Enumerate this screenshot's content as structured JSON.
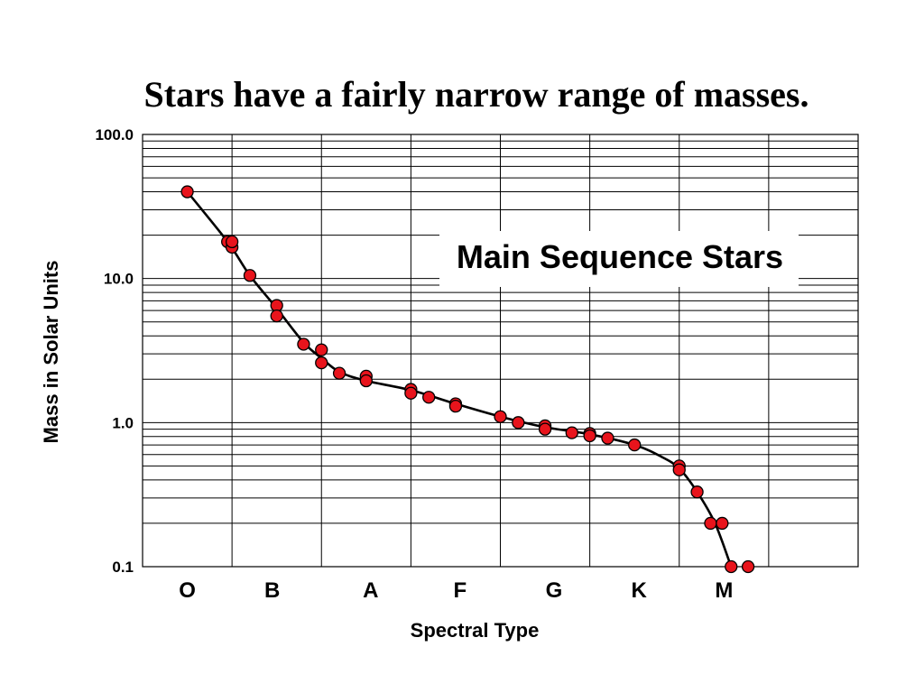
{
  "chart_data": {
    "type": "scatter",
    "title": "Stars have a fairly narrow range of masses.",
    "xlabel": "Spectral Type",
    "ylabel": "Mass in Solar Units",
    "y_scale": "log",
    "ylim": [
      0.1,
      100
    ],
    "y_ticks": [
      "100.0",
      "10.0",
      "1.0",
      "0.1"
    ],
    "x_range": [
      0,
      8
    ],
    "categories": [
      "O",
      "B",
      "A",
      "F",
      "G",
      "K",
      "M"
    ],
    "category_positions": [
      0.5,
      1.45,
      2.55,
      3.55,
      4.6,
      5.55,
      6.5
    ],
    "annotation": "Main Sequence Stars",
    "grid": true,
    "series": [
      {
        "marker_color": "#e8141c",
        "line_color": "#000000",
        "points": [
          {
            "x": 0.5,
            "y": 40
          },
          {
            "x": 0.95,
            "y": 18
          },
          {
            "x": 1.0,
            "y": 16.5
          },
          {
            "x": 1.0,
            "y": 18
          },
          {
            "x": 1.2,
            "y": 10.5
          },
          {
            "x": 1.5,
            "y": 6.5
          },
          {
            "x": 1.5,
            "y": 5.5
          },
          {
            "x": 1.8,
            "y": 3.5
          },
          {
            "x": 2.0,
            "y": 3.2
          },
          {
            "x": 2.0,
            "y": 2.6
          },
          {
            "x": 2.2,
            "y": 2.2
          },
          {
            "x": 2.5,
            "y": 2.1
          },
          {
            "x": 2.5,
            "y": 1.95
          },
          {
            "x": 3.0,
            "y": 1.7
          },
          {
            "x": 3.0,
            "y": 1.6
          },
          {
            "x": 3.2,
            "y": 1.5
          },
          {
            "x": 3.5,
            "y": 1.35
          },
          {
            "x": 3.5,
            "y": 1.3
          },
          {
            "x": 4.0,
            "y": 1.1
          },
          {
            "x": 4.2,
            "y": 1.0
          },
          {
            "x": 4.5,
            "y": 0.95
          },
          {
            "x": 4.5,
            "y": 0.9
          },
          {
            "x": 4.8,
            "y": 0.85
          },
          {
            "x": 5.0,
            "y": 0.84
          },
          {
            "x": 5.0,
            "y": 0.81
          },
          {
            "x": 5.2,
            "y": 0.78
          },
          {
            "x": 5.5,
            "y": 0.7
          },
          {
            "x": 6.0,
            "y": 0.5
          },
          {
            "x": 6.0,
            "y": 0.47
          },
          {
            "x": 6.2,
            "y": 0.33
          },
          {
            "x": 6.35,
            "y": 0.2
          },
          {
            "x": 6.48,
            "y": 0.2
          },
          {
            "x": 6.58,
            "y": 0.1
          },
          {
            "x": 6.77,
            "y": 0.1
          }
        ],
        "curve": [
          {
            "x": 0.5,
            "y": 40
          },
          {
            "x": 0.95,
            "y": 18
          },
          {
            "x": 1.2,
            "y": 10.5
          },
          {
            "x": 1.5,
            "y": 6.2
          },
          {
            "x": 1.8,
            "y": 3.6
          },
          {
            "x": 2.0,
            "y": 2.8
          },
          {
            "x": 2.2,
            "y": 2.25
          },
          {
            "x": 2.5,
            "y": 1.95
          },
          {
            "x": 3.0,
            "y": 1.68
          },
          {
            "x": 3.5,
            "y": 1.35
          },
          {
            "x": 4.0,
            "y": 1.1
          },
          {
            "x": 4.5,
            "y": 0.93
          },
          {
            "x": 5.0,
            "y": 0.83
          },
          {
            "x": 5.5,
            "y": 0.7
          },
          {
            "x": 5.8,
            "y": 0.58
          },
          {
            "x": 6.0,
            "y": 0.48
          },
          {
            "x": 6.2,
            "y": 0.33
          },
          {
            "x": 6.4,
            "y": 0.2
          },
          {
            "x": 6.58,
            "y": 0.1
          }
        ]
      }
    ]
  }
}
